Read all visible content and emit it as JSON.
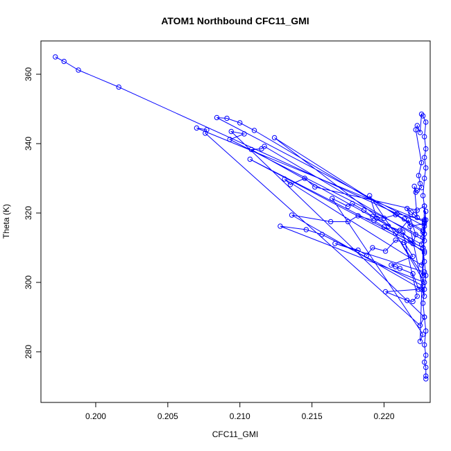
{
  "chart_data": {
    "type": "line",
    "title": "ATOM1 Northbound CFC11_GMI",
    "xlabel": "CFC11_GMI",
    "ylabel": "Theta (K)",
    "xlim": [
      0.1962,
      0.2232
    ],
    "ylim": [
      265.4,
      369.6
    ],
    "x_ticks": [
      0.2,
      0.205,
      0.21,
      0.215,
      0.22
    ],
    "x_tick_labels": [
      "0.200",
      "0.205",
      "0.210",
      "0.215",
      "0.220"
    ],
    "y_ticks": [
      280,
      300,
      320,
      340,
      360
    ],
    "y_tick_labels": [
      "280",
      "300",
      "320",
      "340",
      "360"
    ],
    "grid": false,
    "legend": "none",
    "series": [
      {
        "color": "#0000ff",
        "marker": "open-circle",
        "points": [
          [
            0.1972,
            365.0
          ],
          [
            0.1978,
            363.7
          ],
          [
            0.1988,
            361.2
          ],
          [
            0.2016,
            356.3
          ],
          [
            0.2209,
            319.8
          ],
          [
            0.2228,
            318.0
          ],
          [
            0.2229,
            320.5
          ],
          [
            0.2228,
            316.2
          ],
          [
            0.2084,
            347.5
          ],
          [
            0.2091,
            347.3
          ],
          [
            0.21,
            346.0
          ],
          [
            0.211,
            343.8
          ],
          [
            0.2227,
            315.0
          ],
          [
            0.2228,
            317.5
          ],
          [
            0.207,
            344.5
          ],
          [
            0.2077,
            344.0
          ],
          [
            0.2076,
            343.0
          ],
          [
            0.2225,
            287.6
          ],
          [
            0.2228,
            290.0
          ],
          [
            0.2094,
            343.5
          ],
          [
            0.2103,
            342.8
          ],
          [
            0.2093,
            341.2
          ],
          [
            0.2227,
            313.0
          ],
          [
            0.2226,
            311.0
          ],
          [
            0.2108,
            338.3
          ],
          [
            0.2115,
            338.5
          ],
          [
            0.2117,
            339.2
          ],
          [
            0.2228,
            312.0
          ],
          [
            0.2227,
            314.5
          ],
          [
            0.2124,
            341.7
          ],
          [
            0.2228,
            308.5
          ],
          [
            0.2227,
            310.0
          ],
          [
            0.2107,
            335.5
          ],
          [
            0.2228,
            309.0
          ],
          [
            0.2226,
            305.0
          ],
          [
            0.2131,
            329.8
          ],
          [
            0.2135,
            328.2
          ],
          [
            0.2145,
            330.0
          ],
          [
            0.2152,
            327.5
          ],
          [
            0.2223,
            320.8
          ],
          [
            0.2228,
            322.0
          ],
          [
            0.2225,
            283.0
          ],
          [
            0.2227,
            285.0
          ],
          [
            0.2164,
            324.2
          ],
          [
            0.2175,
            321.9
          ],
          [
            0.2178,
            322.7
          ],
          [
            0.2186,
            320.8
          ],
          [
            0.2192,
            319.0
          ],
          [
            0.22,
            318.5
          ],
          [
            0.2208,
            319.5
          ],
          [
            0.2214,
            318.3
          ],
          [
            0.2218,
            316.1
          ],
          [
            0.2228,
            317.0
          ],
          [
            0.2227,
            302.0
          ],
          [
            0.219,
            325.0
          ],
          [
            0.2195,
            318.5
          ],
          [
            0.2203,
            316.2
          ],
          [
            0.2211,
            315.0
          ],
          [
            0.2217,
            318.0
          ],
          [
            0.2228,
            296.0
          ],
          [
            0.2226,
            298.0
          ],
          [
            0.2136,
            319.4
          ],
          [
            0.2163,
            317.5
          ],
          [
            0.2175,
            317.5
          ],
          [
            0.2182,
            319.2
          ],
          [
            0.2193,
            317.8
          ],
          [
            0.22,
            316.0
          ],
          [
            0.2208,
            314.0
          ],
          [
            0.2228,
            300.0
          ],
          [
            0.2128,
            316.2
          ],
          [
            0.2146,
            315.2
          ],
          [
            0.2157,
            313.8
          ],
          [
            0.2227,
            299.0
          ],
          [
            0.2228,
            303.0
          ],
          [
            0.2166,
            311.2
          ],
          [
            0.2182,
            309.3
          ],
          [
            0.2188,
            307.8
          ],
          [
            0.2192,
            310.0
          ],
          [
            0.2201,
            309.0
          ],
          [
            0.2208,
            312.2
          ],
          [
            0.2214,
            311.5
          ],
          [
            0.222,
            307.5
          ],
          [
            0.2205,
            305.0
          ],
          [
            0.2208,
            304.5
          ],
          [
            0.2211,
            304.0
          ],
          [
            0.222,
            302.5
          ],
          [
            0.2224,
            298.0
          ],
          [
            0.2201,
            297.3
          ],
          [
            0.2216,
            294.8
          ],
          [
            0.222,
            294.5
          ],
          [
            0.2223,
            296.0
          ],
          [
            0.2213,
            314.5
          ],
          [
            0.2218,
            312.2
          ],
          [
            0.222,
            311.2
          ],
          [
            0.2222,
            313.8
          ],
          [
            0.2216,
            321.3
          ],
          [
            0.2219,
            320.2
          ],
          [
            0.2221,
            319.5
          ],
          [
            0.2223,
            318.7
          ],
          [
            0.2221,
            327.7
          ],
          [
            0.2222,
            326.0
          ],
          [
            0.2223,
            326.5
          ],
          [
            0.2226,
            327.3
          ],
          [
            0.2225,
            328.5
          ],
          [
            0.2224,
            330.8
          ],
          [
            0.2226,
            334.5
          ],
          [
            0.2222,
            344.0
          ],
          [
            0.2223,
            345.2
          ],
          [
            0.2225,
            343.2
          ],
          [
            0.2226,
            348.5
          ],
          [
            0.2227,
            348.0
          ],
          [
            0.2229,
            346.2
          ],
          [
            0.2228,
            342.0
          ],
          [
            0.2229,
            338.5
          ],
          [
            0.2228,
            336.0
          ],
          [
            0.2229,
            333.0
          ],
          [
            0.2228,
            330.0
          ],
          [
            0.2227,
            325.0
          ],
          [
            0.2228,
            322.0
          ],
          [
            0.2229,
            318.0
          ],
          [
            0.2228,
            314.0
          ],
          [
            0.2227,
            310.0
          ],
          [
            0.2228,
            306.0
          ],
          [
            0.2229,
            302.0
          ],
          [
            0.2228,
            298.0
          ],
          [
            0.2227,
            294.0
          ],
          [
            0.2228,
            290.0
          ],
          [
            0.2229,
            286.0
          ],
          [
            0.2228,
            282.0
          ],
          [
            0.2229,
            279.0
          ],
          [
            0.2228,
            277.0
          ],
          [
            0.2229,
            275.5
          ],
          [
            0.2229,
            273.0
          ],
          [
            0.2229,
            272.2
          ]
        ]
      }
    ]
  }
}
